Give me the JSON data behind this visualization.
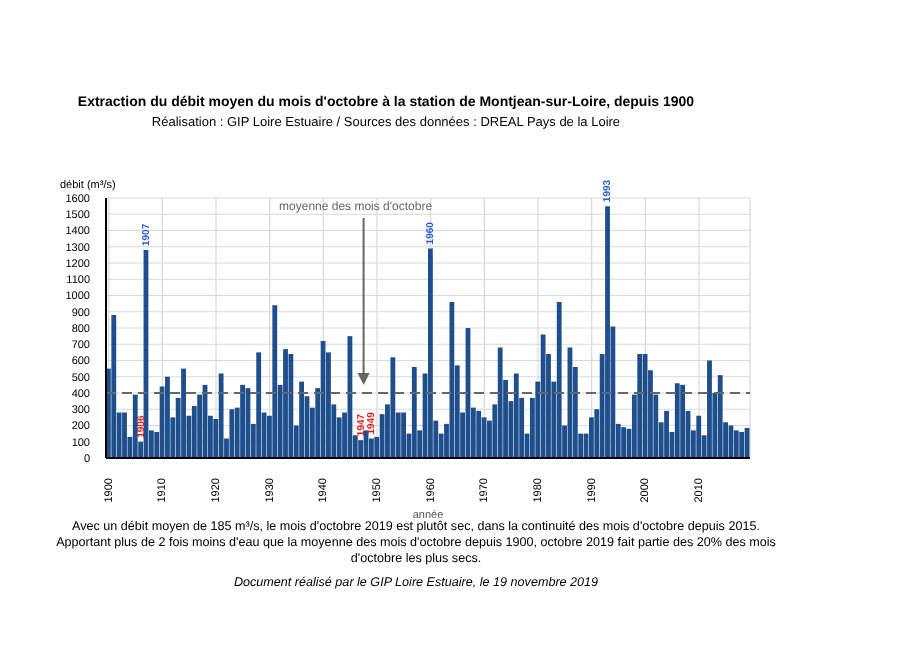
{
  "chart_data": {
    "type": "bar",
    "title": "Extraction du débit moyen du mois d'octobre à la station de Montjean-sur-Loire, depuis 1900",
    "subtitle": "Réalisation : GIP Loire Estuaire / Sources des données : DREAL Pays de la Loire",
    "xlabel": "année",
    "ylabel": "débit (m³/s)",
    "x": [
      1900,
      1901,
      1902,
      1903,
      1904,
      1905,
      1906,
      1907,
      1908,
      1909,
      1910,
      1911,
      1912,
      1913,
      1914,
      1915,
      1916,
      1917,
      1918,
      1919,
      1920,
      1921,
      1922,
      1923,
      1924,
      1925,
      1926,
      1927,
      1928,
      1929,
      1930,
      1931,
      1932,
      1933,
      1934,
      1935,
      1936,
      1937,
      1938,
      1939,
      1940,
      1941,
      1942,
      1943,
      1944,
      1945,
      1946,
      1947,
      1948,
      1949,
      1950,
      1951,
      1952,
      1953,
      1954,
      1955,
      1956,
      1957,
      1958,
      1959,
      1960,
      1961,
      1962,
      1963,
      1964,
      1965,
      1966,
      1967,
      1968,
      1969,
      1970,
      1971,
      1972,
      1973,
      1974,
      1975,
      1976,
      1977,
      1978,
      1979,
      1980,
      1981,
      1982,
      1983,
      1984,
      1985,
      1986,
      1987,
      1988,
      1989,
      1990,
      1991,
      1992,
      1993,
      1994,
      1995,
      1996,
      1997,
      1998,
      1999,
      2000,
      2001,
      2002,
      2003,
      2004,
      2005,
      2006,
      2007,
      2008,
      2009,
      2010,
      2011,
      2012,
      2013,
      2014,
      2015,
      2016,
      2017,
      2018,
      2019
    ],
    "values": [
      550,
      880,
      280,
      280,
      130,
      390,
      100,
      1280,
      170,
      160,
      440,
      500,
      250,
      370,
      550,
      260,
      320,
      390,
      450,
      260,
      240,
      520,
      120,
      300,
      310,
      450,
      430,
      210,
      650,
      280,
      260,
      940,
      450,
      670,
      640,
      200,
      470,
      380,
      310,
      430,
      720,
      650,
      330,
      250,
      280,
      750,
      140,
      110,
      170,
      120,
      130,
      270,
      330,
      620,
      280,
      280,
      150,
      560,
      170,
      520,
      1290,
      230,
      150,
      210,
      960,
      570,
      280,
      800,
      310,
      290,
      250,
      230,
      330,
      680,
      480,
      350,
      520,
      370,
      150,
      370,
      470,
      760,
      640,
      470,
      960,
      200,
      680,
      560,
      150,
      150,
      250,
      300,
      640,
      1550,
      810,
      210,
      190,
      180,
      390,
      640,
      640,
      540,
      390,
      220,
      290,
      160,
      460,
      450,
      290,
      170,
      260,
      140,
      600,
      400,
      510,
      220,
      200,
      170,
      160,
      185
    ],
    "color": "#1f4e8c",
    "xlim": [
      1899.5,
      2019.5
    ],
    "xticks": [
      1900,
      1910,
      1920,
      1930,
      1940,
      1950,
      1960,
      1970,
      1980,
      1990,
      2000,
      2010
    ],
    "ylim": [
      0,
      1600
    ],
    "yticks": [
      0,
      100,
      200,
      300,
      400,
      500,
      600,
      700,
      800,
      900,
      1000,
      1100,
      1200,
      1300,
      1400,
      1500,
      1600
    ],
    "grid": true,
    "ref_lines": [
      {
        "axis": "y",
        "value": 400,
        "label": "moyenne des mois d'octobre",
        "color": "#666666",
        "line_style": "dashed"
      }
    ],
    "annotations": [
      {
        "text": "1906",
        "x": 1906,
        "y": 100
      },
      {
        "text": "1907",
        "x": 1907,
        "y": 1280
      },
      {
        "text": "1947",
        "x": 1947,
        "y": 110
      },
      {
        "text": "1949",
        "x": 1949,
        "y": 120
      },
      {
        "text": "1960",
        "x": 1960,
        "y": 1290
      },
      {
        "text": "1993",
        "x": 1993,
        "y": 1550
      },
      "Avec un débit moyen de 185 m³/s, le mois d'octobre 2019 est plutôt sec, dans la continuité des mois d'octobre depuis 2015. Apportant plus de 2 fois moins d'eau que la moyenne des mois d'octobre depuis 1900, octobre 2019 fait partie des 20% des mois d'octobre les plus secs.",
      "Document réalisé par le GIP Loire Estuaire, le 19 novembre 2019"
    ]
  }
}
